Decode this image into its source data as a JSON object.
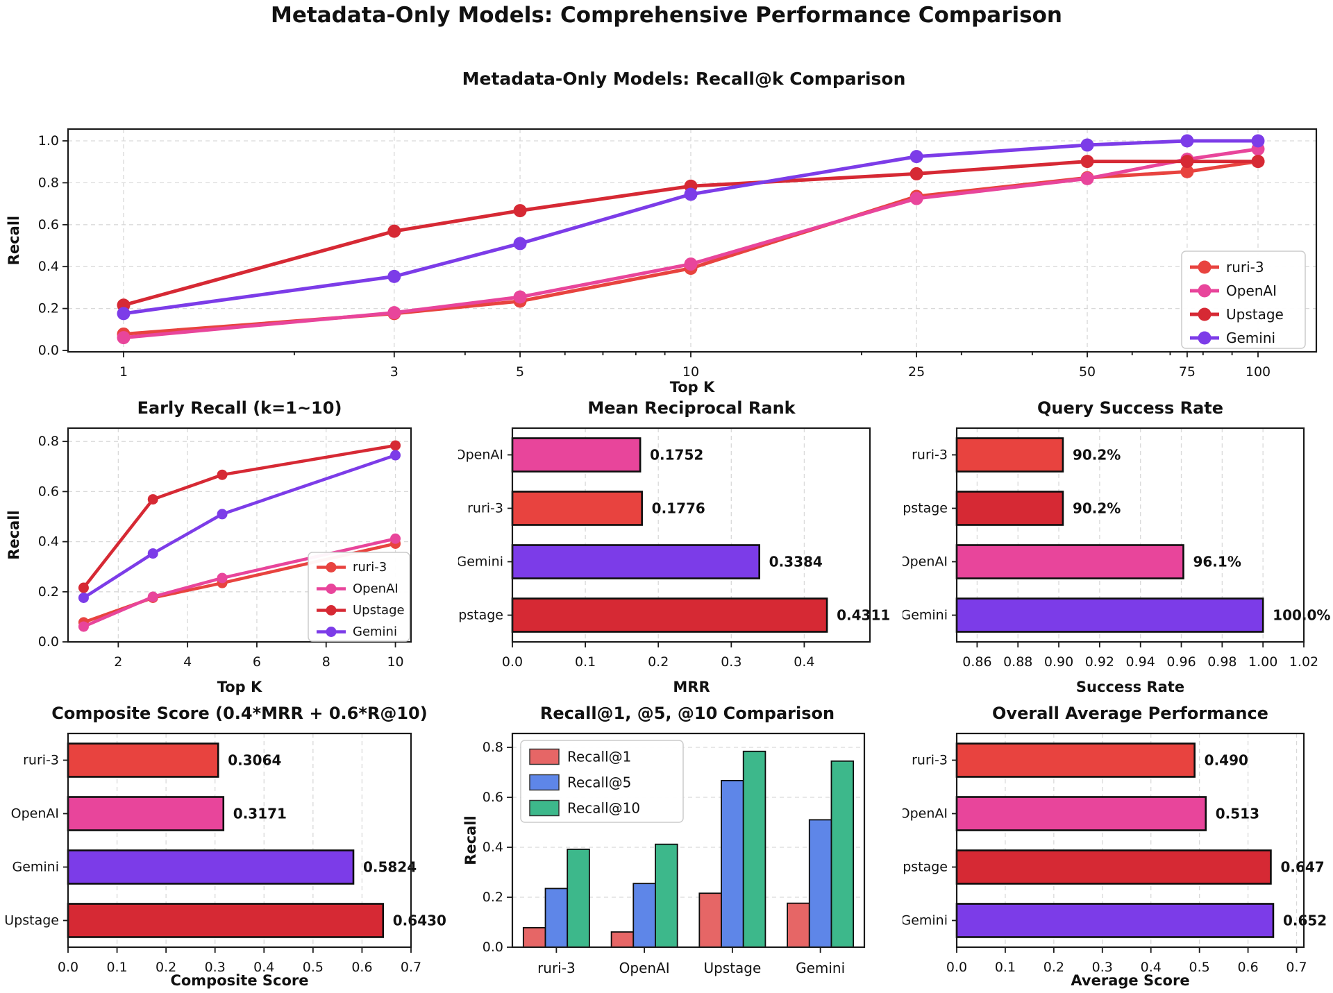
{
  "main_title": "Metadata-Only Models: Comprehensive Performance Comparison",
  "colors": {
    "ruri3": "#e8433f",
    "openai": "#e8459b",
    "upstage": "#d62934",
    "gemini": "#7c3ce8",
    "recall1": "#e66666",
    "recall5": "#5e86e8",
    "recall10": "#3db88b",
    "grid": "#d9d9d9",
    "spine": "#1a1a1a",
    "legend_edge": "#cccccc"
  },
  "chart_data": [
    {
      "id": "recall_at_k",
      "type": "line",
      "title": "Metadata-Only Models: Recall@k Comparison",
      "xlabel": "Top K",
      "ylabel": "Recall",
      "xscale": "log",
      "x": [
        1,
        3,
        5,
        10,
        25,
        50,
        75,
        100
      ],
      "xtick_labels": [
        "1",
        "3",
        "5",
        "10",
        "25",
        "50",
        "75",
        "100"
      ],
      "ytick_values": [
        0.0,
        0.2,
        0.4,
        0.6,
        0.8,
        1.0
      ],
      "ytick_labels": [
        "0.0",
        "0.2",
        "0.4",
        "0.6",
        "0.8",
        "1.0"
      ],
      "series": [
        {
          "name": "ruri-3",
          "color": "ruri3",
          "values": [
            0.078,
            0.176,
            0.235,
            0.392,
            0.735,
            0.824,
            0.853,
            0.902
          ]
        },
        {
          "name": "OpenAI",
          "color": "openai",
          "values": [
            0.061,
            0.18,
            0.255,
            0.412,
            0.725,
            0.82,
            0.912,
            0.961
          ]
        },
        {
          "name": "Upstage",
          "color": "upstage",
          "values": [
            0.216,
            0.569,
            0.667,
            0.784,
            0.843,
            0.902,
            0.902,
            0.902
          ]
        },
        {
          "name": "Gemini",
          "color": "gemini",
          "values": [
            0.176,
            0.353,
            0.51,
            0.745,
            0.925,
            0.98,
            1.0,
            1.0
          ]
        }
      ],
      "legend": [
        "ruri-3",
        "OpenAI",
        "Upstage",
        "Gemini"
      ],
      "legend_position": "lower right"
    },
    {
      "id": "early_recall",
      "type": "line",
      "title": "Early Recall (k=1~10)",
      "xlabel": "Top K",
      "ylabel": "Recall",
      "xscale": "linear",
      "x": [
        1,
        3,
        5,
        10
      ],
      "xtick_values": [
        2,
        4,
        6,
        8,
        10
      ],
      "xtick_labels": [
        "2",
        "4",
        "6",
        "8",
        "10"
      ],
      "ytick_values": [
        0.0,
        0.2,
        0.4,
        0.6,
        0.8
      ],
      "ytick_labels": [
        "0.0",
        "0.2",
        "0.4",
        "0.6",
        "0.8"
      ],
      "series": [
        {
          "name": "ruri-3",
          "color": "ruri3",
          "values": [
            0.078,
            0.176,
            0.235,
            0.392
          ]
        },
        {
          "name": "OpenAI",
          "color": "openai",
          "values": [
            0.061,
            0.18,
            0.255,
            0.412
          ]
        },
        {
          "name": "Upstage",
          "color": "upstage",
          "values": [
            0.216,
            0.569,
            0.667,
            0.784
          ]
        },
        {
          "name": "Gemini",
          "color": "gemini",
          "values": [
            0.176,
            0.353,
            0.51,
            0.745
          ]
        }
      ],
      "legend": [
        "ruri-3",
        "OpenAI",
        "Upstage",
        "Gemini"
      ],
      "legend_position": "lower right"
    },
    {
      "id": "mrr",
      "type": "hbar",
      "title": "Mean Reciprocal Rank",
      "xlabel": "MRR",
      "xlim": [
        0,
        0.49
      ],
      "xtick_values": [
        0.0,
        0.1,
        0.2,
        0.3,
        0.4
      ],
      "xtick_labels": [
        "0.0",
        "0.1",
        "0.2",
        "0.3",
        "0.4"
      ],
      "bars": [
        {
          "label": "OpenAI",
          "value": 0.1752,
          "text": "0.1752",
          "color": "openai"
        },
        {
          "label": "ruri-3",
          "value": 0.1776,
          "text": "0.1776",
          "color": "ruri3"
        },
        {
          "label": "Gemini",
          "value": 0.3384,
          "text": "0.3384",
          "color": "gemini"
        },
        {
          "label": "Upstage",
          "value": 0.4311,
          "text": "0.4311",
          "color": "upstage"
        }
      ]
    },
    {
      "id": "success",
      "type": "hbar",
      "title": "Query Success Rate",
      "xlabel": "Success Rate",
      "xlim": [
        0.85,
        1.02
      ],
      "xtick_values": [
        0.86,
        0.88,
        0.9,
        0.92,
        0.94,
        0.96,
        0.98,
        1.0,
        1.02
      ],
      "xtick_labels": [
        "0.86",
        "0.88",
        "0.90",
        "0.92",
        "0.94",
        "0.96",
        "0.98",
        "1.00",
        "1.02"
      ],
      "bars": [
        {
          "label": "ruri-3",
          "value": 0.902,
          "text": "90.2%",
          "color": "ruri3"
        },
        {
          "label": "Upstage",
          "value": 0.902,
          "text": "90.2%",
          "color": "upstage"
        },
        {
          "label": "OpenAI",
          "value": 0.961,
          "text": "96.1%",
          "color": "openai"
        },
        {
          "label": "Gemini",
          "value": 1.0,
          "text": "100.0%",
          "color": "gemini"
        }
      ]
    },
    {
      "id": "composite",
      "type": "hbar",
      "title": "Composite Score (0.4*MRR + 0.6*R@10)",
      "xlabel": "Composite Score",
      "xlim": [
        0,
        0.7
      ],
      "xtick_values": [
        0.0,
        0.1,
        0.2,
        0.3,
        0.4,
        0.5,
        0.6,
        0.7
      ],
      "xtick_labels": [
        "0.0",
        "0.1",
        "0.2",
        "0.3",
        "0.4",
        "0.5",
        "0.6",
        "0.7"
      ],
      "bars": [
        {
          "label": "ruri-3",
          "value": 0.3064,
          "text": "0.3064",
          "color": "ruri3"
        },
        {
          "label": "OpenAI",
          "value": 0.3171,
          "text": "0.3171",
          "color": "openai"
        },
        {
          "label": "Gemini",
          "value": 0.5824,
          "text": "0.5824",
          "color": "gemini"
        },
        {
          "label": "Upstage",
          "value": 0.643,
          "text": "0.6430",
          "color": "upstage"
        }
      ]
    },
    {
      "id": "recall_comparison",
      "type": "gbar",
      "title": "Recall@1, @5, @10 Comparison",
      "ylabel": "Recall",
      "categories": [
        "ruri-3",
        "OpenAI",
        "Upstage",
        "Gemini"
      ],
      "ytick_values": [
        0.0,
        0.2,
        0.4,
        0.6,
        0.8
      ],
      "ytick_labels": [
        "0.0",
        "0.2",
        "0.4",
        "0.6",
        "0.8"
      ],
      "series": [
        {
          "name": "Recall@1",
          "color": "recall1",
          "values": [
            0.078,
            0.061,
            0.216,
            0.176
          ]
        },
        {
          "name": "Recall@5",
          "color": "recall5",
          "values": [
            0.235,
            0.255,
            0.667,
            0.51
          ]
        },
        {
          "name": "Recall@10",
          "color": "recall10",
          "values": [
            0.392,
            0.412,
            0.784,
            0.745
          ]
        }
      ],
      "legend": [
        "Recall@1",
        "Recall@5",
        "Recall@10"
      ],
      "legend_position": "upper left"
    },
    {
      "id": "overall",
      "type": "hbar",
      "title": "Overall Average Performance",
      "xlabel": "Average Score",
      "xlim": [
        0,
        0.715
      ],
      "xtick_values": [
        0.0,
        0.1,
        0.2,
        0.3,
        0.4,
        0.5,
        0.6,
        0.7
      ],
      "xtick_labels": [
        "0.0",
        "0.1",
        "0.2",
        "0.3",
        "0.4",
        "0.5",
        "0.6",
        "0.7"
      ],
      "bars": [
        {
          "label": "ruri-3",
          "value": 0.49,
          "text": "0.490",
          "color": "ruri3"
        },
        {
          "label": "OpenAI",
          "value": 0.513,
          "text": "0.513",
          "color": "openai"
        },
        {
          "label": "Upstage",
          "value": 0.647,
          "text": "0.647",
          "color": "upstage"
        },
        {
          "label": "Gemini",
          "value": 0.652,
          "text": "0.652",
          "color": "gemini"
        }
      ]
    }
  ]
}
